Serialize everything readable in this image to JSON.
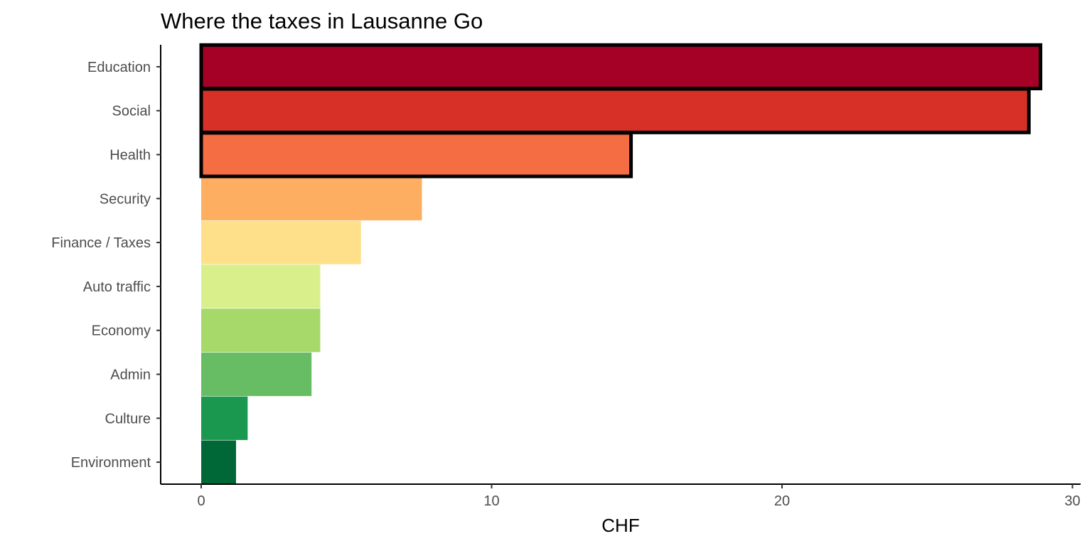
{
  "chart_data": {
    "type": "bar",
    "orientation": "horizontal",
    "title": "Where the taxes in Lausanne Go",
    "xlabel": "CHF",
    "ylabel": "",
    "xlim": [
      -1.4,
      30.3
    ],
    "xticks": [
      0,
      10,
      20,
      30
    ],
    "xtick_labels": [
      "0",
      "10",
      "20",
      "30"
    ],
    "grid": false,
    "categories": [
      "Education",
      "Social",
      "Health",
      "Security",
      "Finance / Taxes",
      "Auto traffic",
      "Economy",
      "Admin",
      "Culture",
      "Environment"
    ],
    "values": [
      28.9,
      28.5,
      14.8,
      7.6,
      5.5,
      4.1,
      4.1,
      3.8,
      1.6,
      1.2
    ],
    "highlighted": [
      true,
      true,
      true,
      false,
      false,
      false,
      false,
      false,
      false,
      false
    ],
    "colors": [
      "#A50026",
      "#D73027",
      "#F46D43",
      "#FDAE61",
      "#FEE08B",
      "#D9EF8B",
      "#A6D96A",
      "#66BD63",
      "#1A9850",
      "#006837"
    ],
    "highlight_outline_color": "#000000"
  }
}
